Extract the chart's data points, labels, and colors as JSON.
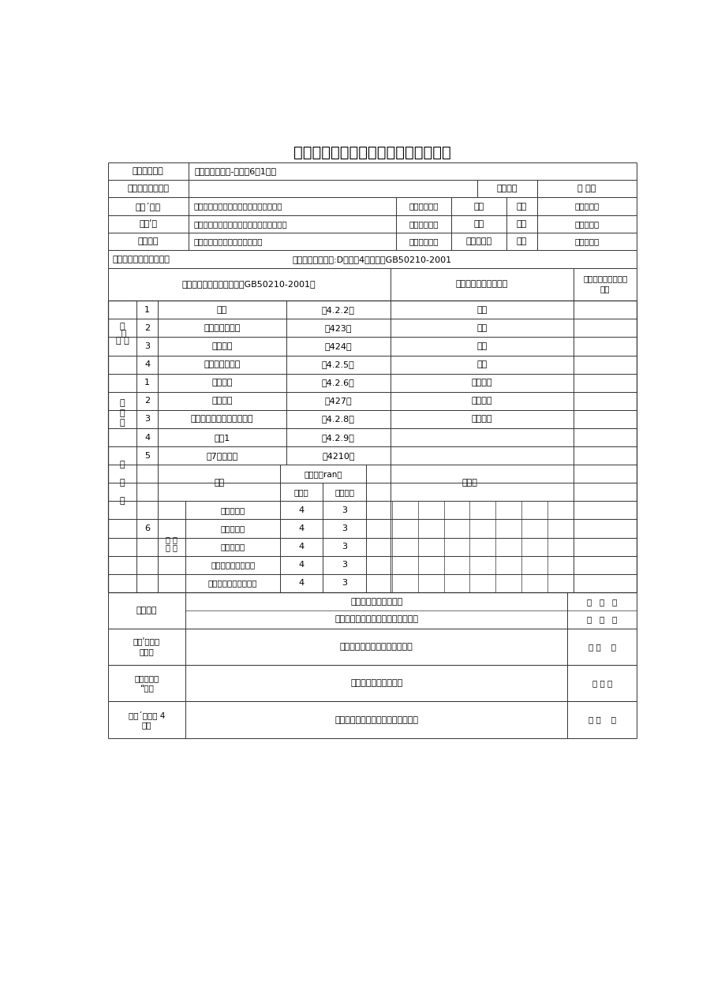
{
  "title": "墙而一般抹灰工程质量分户验收记录表",
  "bg_color": "#ffffff",
  "line_color": "#333333",
  "text_color": "#000000",
  "unit_name_label": "单位工程名称",
  "unit_name_value": "正安县东方新城-千洋苑6栋1单元",
  "dept_label": "验收部位（房号）",
  "date_label": "检查日期",
  "date_value": "年 月日",
  "build_label": "建设´（立",
  "build_value": "七泊房地产开发有限责任公司正安分公司",
  "build_person_label": "参检人员姓名",
  "build_person_value": "孙院",
  "build_job_label": "职务",
  "build_job_value": "项目负责人",
  "construct_label": "施工ʹ位",
  "construct_value": "七冶土木建筑工程有限责任公司正安项目部",
  "construct_person_label": "参检人员姓名",
  "construct_person_value": "李筑",
  "construct_job_label": "职务",
  "construct_job_value": "项目负责人",
  "supervise_label": "监理单位",
  "supervise_value": "贵州建安土木工程监理有限公司",
  "supervise_person_label": "参检人员姓名",
  "supervise_person_value": "潘平杨光前",
  "supervise_job_label": "职务",
  "supervise_job_value": "监理工程师",
  "std_prefix": "施工执行标准名称及编号",
  "std_value": "《建鹰饰装修工施:D员量验4妙见范》GB50210-2001",
  "header_col1": "施工质量验收规范的规定（GB50210-2001）",
  "header_col2": "施工单位检查评定记录",
  "header_col3_line1": "监理（建设）单位验",
  "header_col3_line2": "收意",
  "main_control_label_chars": [
    "主",
    "控",
    "项",
    "目"
  ],
  "main_items": [
    [
      "1",
      "表而",
      "第4.2.2条",
      "合格"
    ],
    [
      "2",
      "材料品种和性能",
      "第423条",
      "合格"
    ],
    [
      "3",
      "操作要求",
      "第424条",
      "合格"
    ],
    [
      "4",
      "层粘嗄而层质量",
      "第4.2.5条",
      "合格"
    ]
  ],
  "gen_label_chars": [
    "般",
    "项",
    "目"
  ],
  "gen_label_extra": "般\n\n项\n\n目",
  "gen_items": [
    [
      "1",
      "表而质量",
      "第4.2.6条",
      "符合要求"
    ],
    [
      "2",
      "细部质量",
      "第427条",
      "符合要求"
    ],
    [
      "3",
      "层与层间材料要求层总厚度",
      "第4.2.8条",
      "符合要求"
    ],
    [
      "4",
      "分愀1",
      "第4.2.9条",
      ""
    ],
    [
      "5",
      "滴7破（槽）",
      "第4210条",
      ""
    ]
  ],
  "dev_header_allow": "允许偏（ran）",
  "dev_header_proj": "项目",
  "dev_header_com": "普咋灰",
  "dev_header_adv": "高级抹灰",
  "dev_header_meas": "实测值",
  "dev_label_6": "6",
  "dev_label_allow": "允 许\n偏 差",
  "dev_items": [
    [
      "立面垂直度",
      "4",
      "3"
    ],
    [
      "表面垂直度",
      "4",
      "3"
    ],
    [
      "阴阳角方正",
      "4",
      "3"
    ],
    [
      "分格条（缝）直线度",
      "4",
      "3"
    ],
    [
      "墙裙、勒脚上口直线度",
      "4",
      "3"
    ]
  ],
  "review_label": "复查记录",
  "review_line1": "监理工程师（签章）：",
  "review_line2": "建设单位专业技术负责人（签章）：",
  "review_date1": "年   月   日",
  "review_date2": "年   月   日",
  "construct_result_label_line1": "施工ʹ（立评",
  "construct_result_label_line2": "定结果",
  "construct_result_text": "施工单位质量检查员（签章）：",
  "construct_result_date": "年 月    日",
  "supervise_result_label_line1": "监理单位验",
  "supervise_result_label_line2": "“碟论",
  "supervise_result_text": "监理工程师（签章）：",
  "supervise_result_date": "年 月 日",
  "build_result_label_line1": "建设´（立验 4",
  "build_result_label_line2": "姊论",
  "build_result_text": "建设单位专业技术负责人（签章）：",
  "build_result_date": "年 月    日"
}
